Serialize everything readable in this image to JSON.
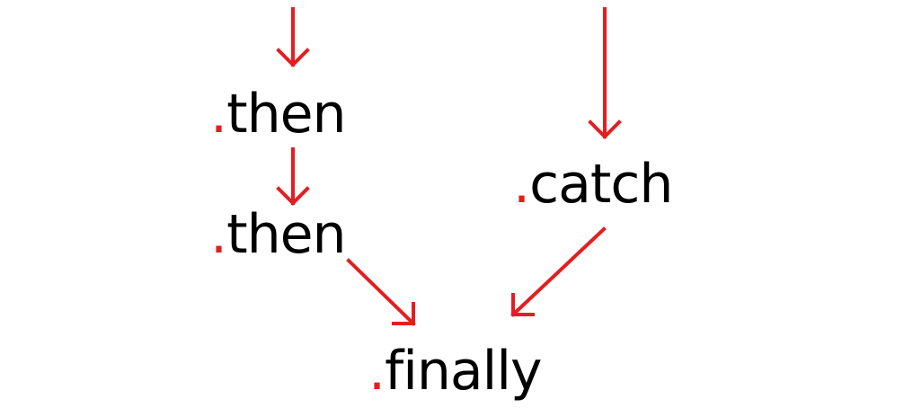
{
  "diagram": {
    "nodes": {
      "then_1": {
        "dot": ".",
        "text": "then"
      },
      "then_2": {
        "dot": ".",
        "text": "then"
      },
      "catch": {
        "dot": ".",
        "text": "catch"
      },
      "finally": {
        "dot": ".",
        "text": "finally"
      }
    },
    "edges": [
      {
        "from": "start",
        "to": "then_1"
      },
      {
        "from": "then_1",
        "to": "then_2"
      },
      {
        "from": "then_2",
        "to": "finally"
      },
      {
        "from": "start",
        "to": "catch"
      },
      {
        "from": "catch",
        "to": "finally"
      }
    ],
    "colors": {
      "arrow": "#e41e20",
      "dot": "#e41e20",
      "text": "#000000",
      "background": "#ffffff"
    }
  }
}
